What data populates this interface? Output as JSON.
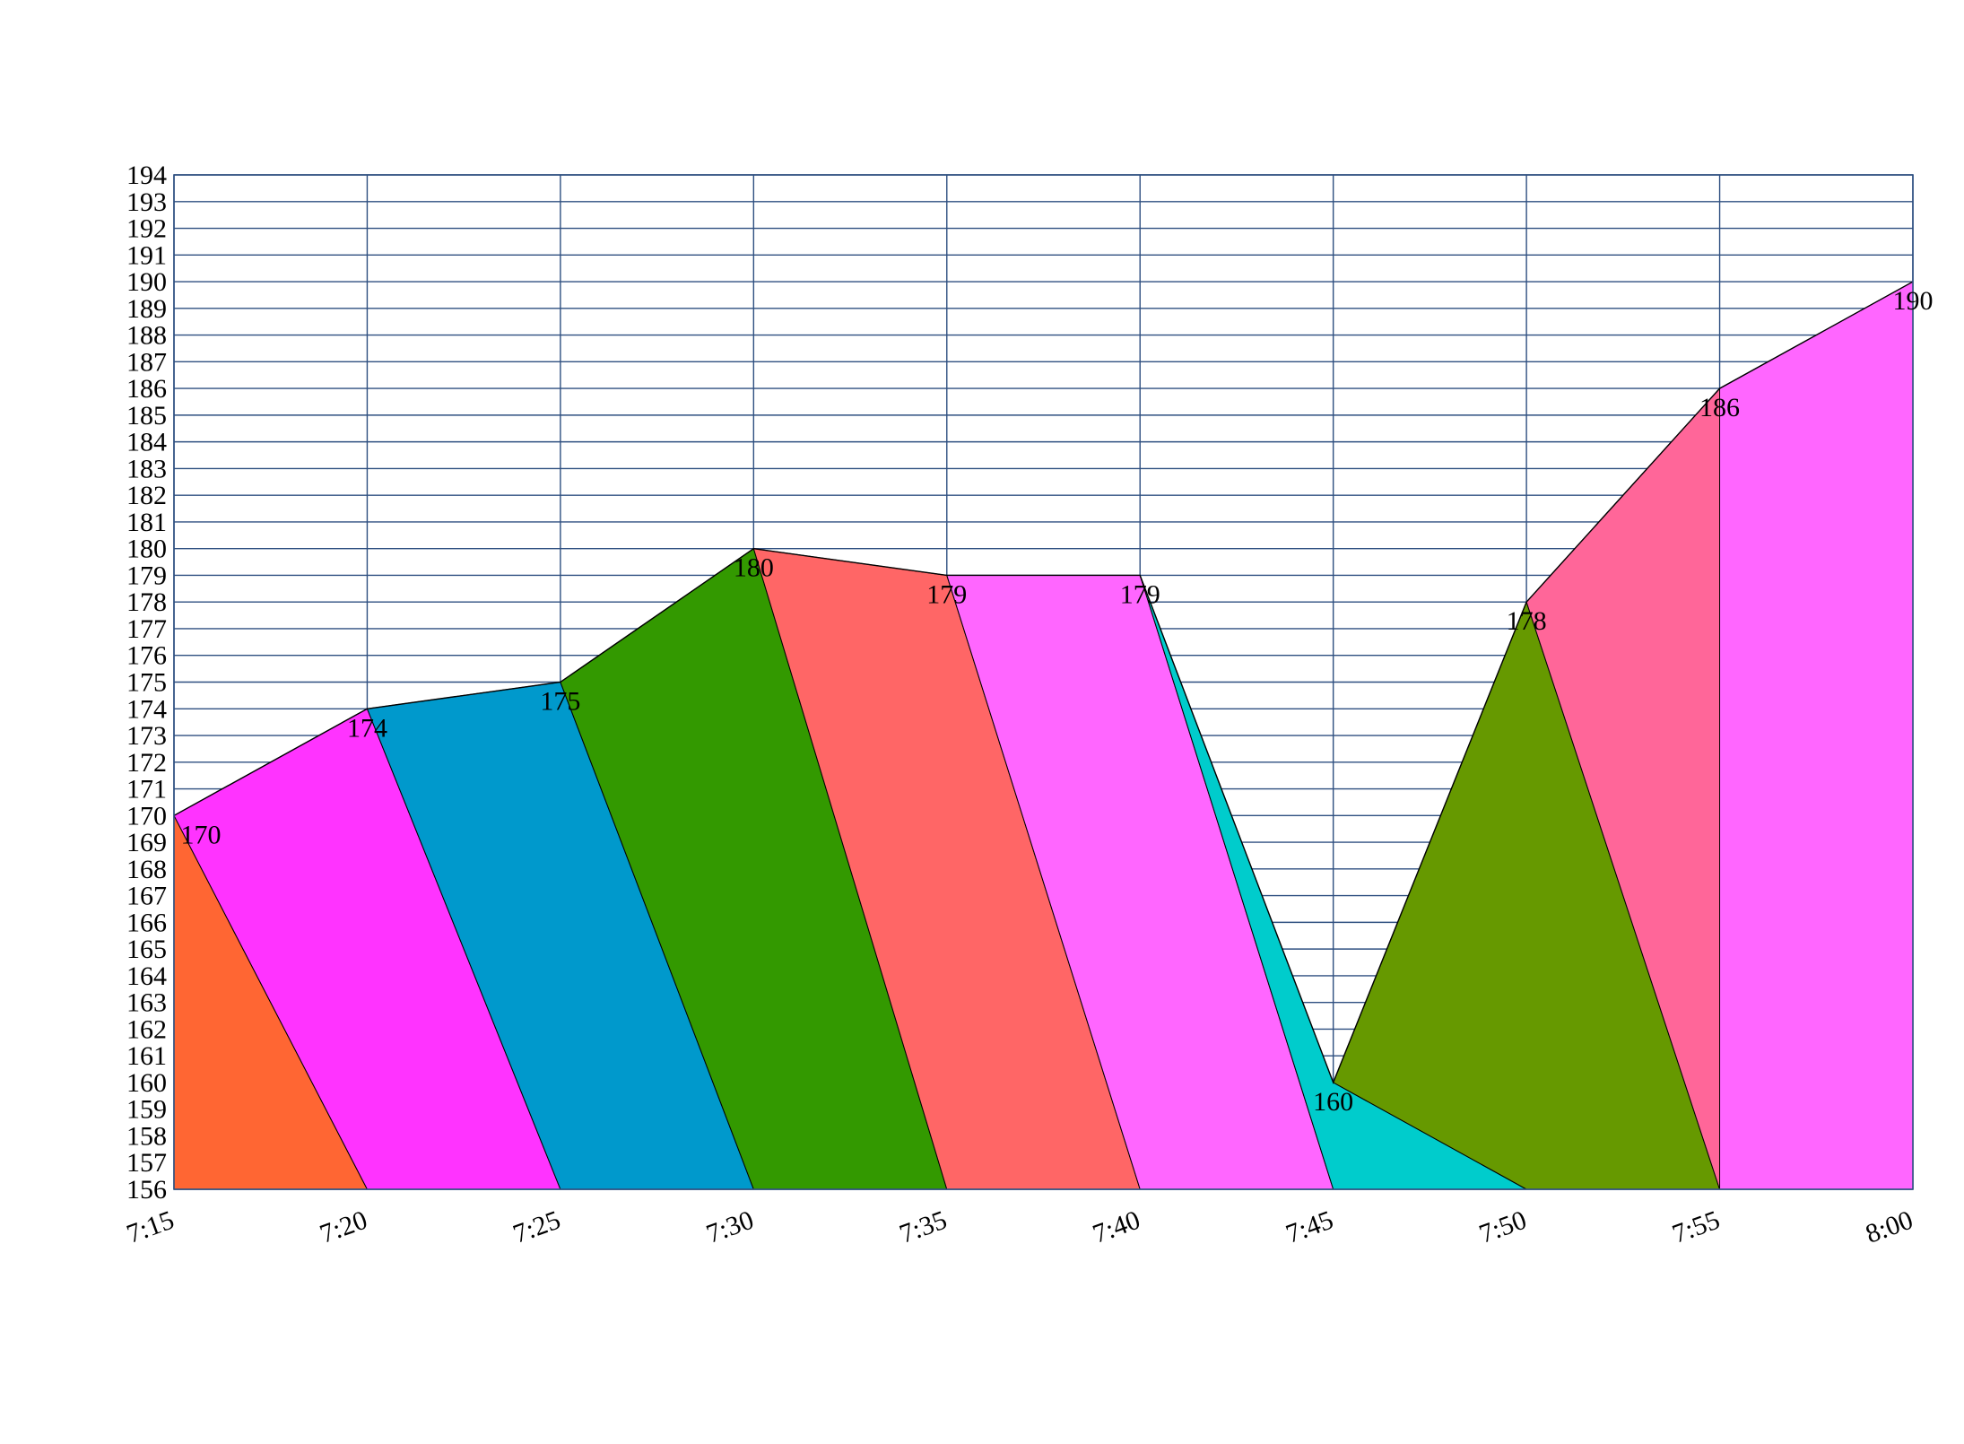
{
  "chart_data": {
    "type": "area",
    "title": "",
    "xlabel": "",
    "ylabel": "",
    "categories": [
      "7:15",
      "7:20",
      "7:25",
      "7:30",
      "7:35",
      "7:40",
      "7:45",
      "7:50",
      "7:55",
      "8:00"
    ],
    "values": [
      170,
      174,
      175,
      180,
      179,
      179,
      160,
      178,
      186,
      190
    ],
    "data_labels": [
      "170",
      "174",
      "175",
      "180",
      "179",
      "179",
      "160",
      "178",
      "186",
      "190"
    ],
    "ylim": [
      156,
      194
    ],
    "y_ticks": [
      "156",
      "157",
      "158",
      "159",
      "160",
      "161",
      "162",
      "163",
      "164",
      "165",
      "166",
      "167",
      "168",
      "169",
      "170",
      "171",
      "172",
      "173",
      "174",
      "175",
      "176",
      "177",
      "178",
      "179",
      "180",
      "181",
      "182",
      "183",
      "184",
      "185",
      "186",
      "187",
      "188",
      "189",
      "190",
      "191",
      "192",
      "193",
      "194"
    ],
    "grid": true,
    "segment_colors": [
      "#ff6633",
      "#ff33ff",
      "#0099cc",
      "#339900",
      "#ff6666",
      "#ff66ff",
      "#00cccc",
      "#669900",
      "#ff6699",
      "#ff66ff"
    ]
  }
}
